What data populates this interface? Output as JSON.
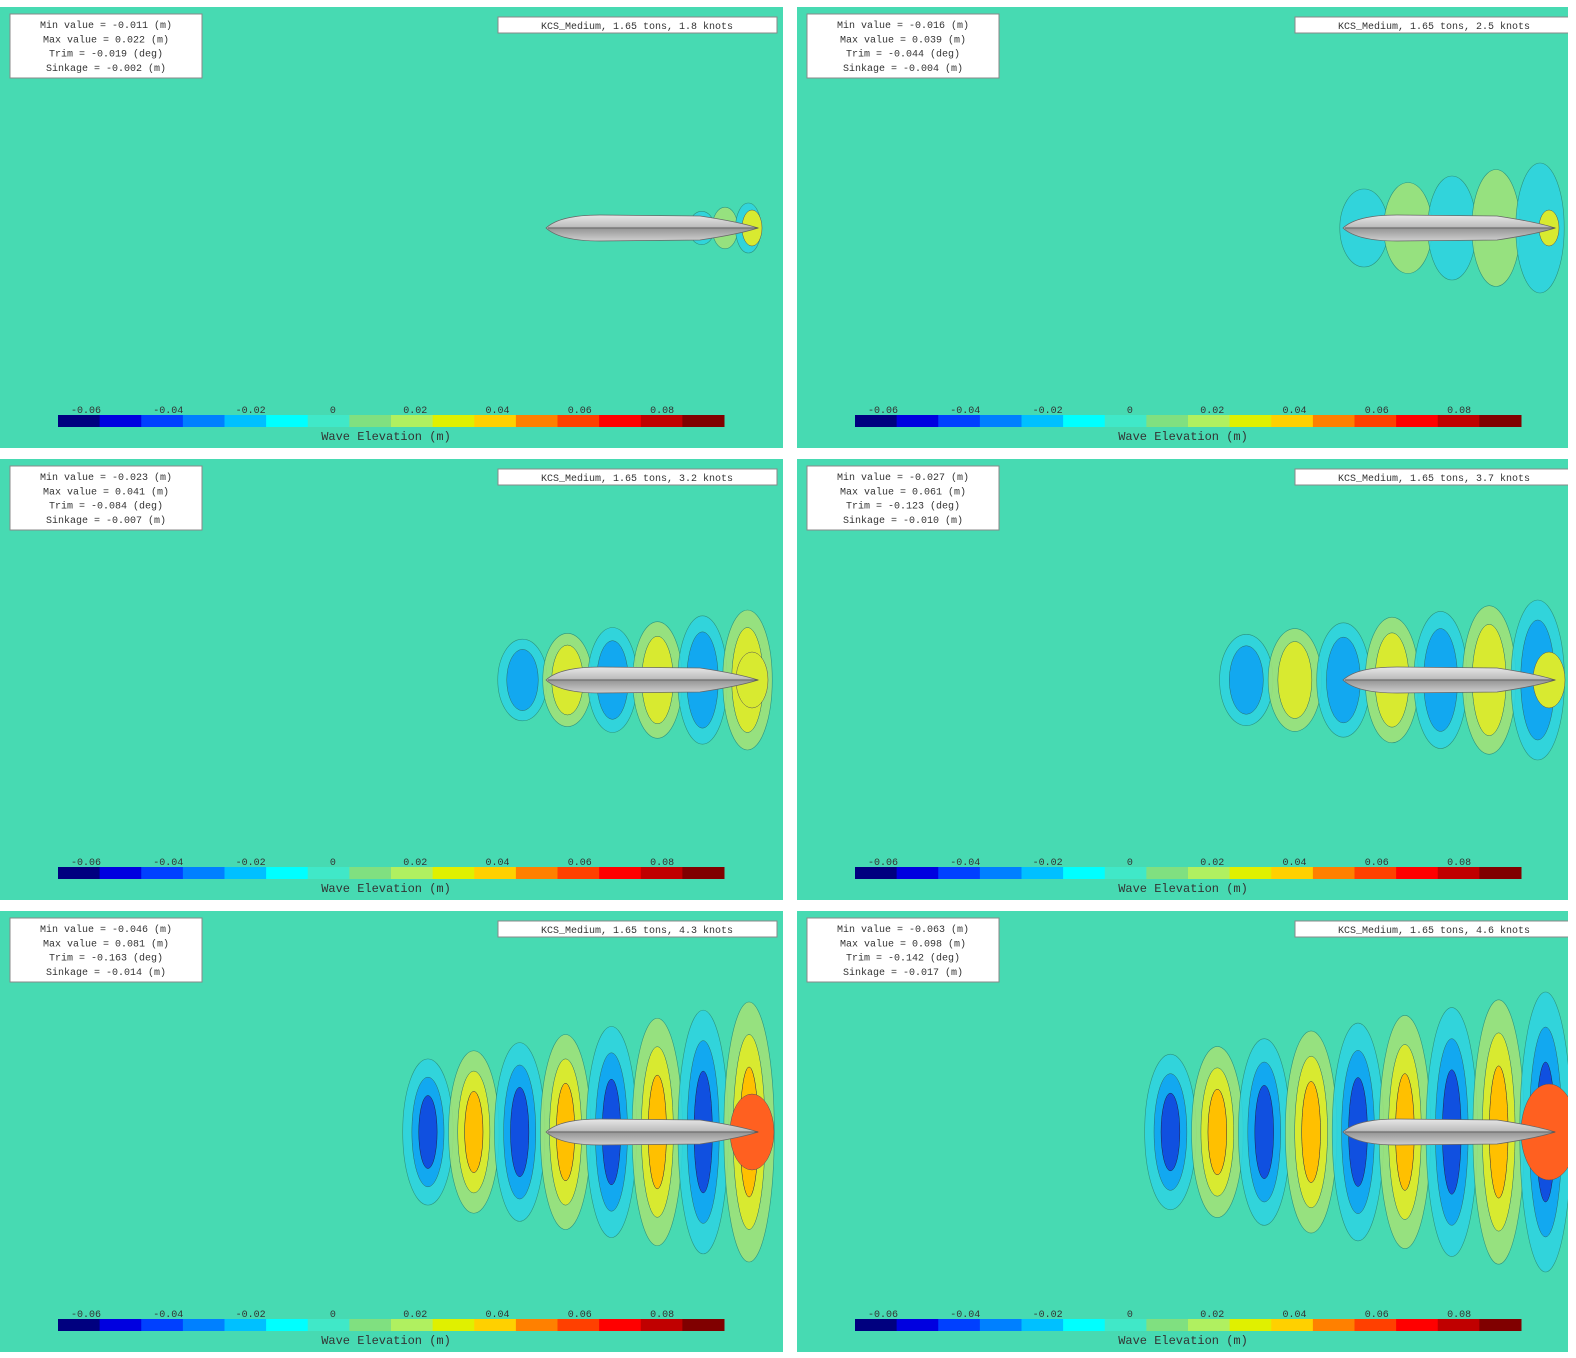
{
  "panels": [
    {
      "title": "KCS_Medium, 1.65 tons, 1.8 knots",
      "info": [
        "Min value = -0.011 (m)",
        "Max value = 0.022 (m)",
        "Trim = -0.019 (deg)",
        "Sinkage = -0.002 (m)"
      ]
    },
    {
      "title": "KCS_Medium, 1.65 tons, 2.5 knots",
      "info": [
        "Min value = -0.016 (m)",
        "Max value = 0.039 (m)",
        "Trim = -0.044 (deg)",
        "Sinkage = -0.004 (m)"
      ]
    },
    {
      "title": "KCS_Medium, 1.65 tons, 3.2 knots",
      "info": [
        "Min value = -0.023 (m)",
        "Max value = 0.041 (m)",
        "Trim = -0.084 (deg)",
        "Sinkage = -0.007 (m)"
      ]
    },
    {
      "title": "KCS_Medium, 1.65 tons, 3.7 knots",
      "info": [
        "Min value = -0.027 (m)",
        "Max value = 0.061 (m)",
        "Trim = -0.123 (deg)",
        "Sinkage = -0.010 (m)"
      ]
    },
    {
      "title": "KCS_Medium, 1.65 tons, 4.3 knots",
      "info": [
        "Min value = -0.046 (m)",
        "Max value = 0.081 (m)",
        "Trim = -0.163 (deg)",
        "Sinkage = -0.014 (m)"
      ]
    },
    {
      "title": "KCS_Medium, 1.65 tons, 4.6 knots",
      "info": [
        "Min value = -0.063 (m)",
        "Max value = 0.098 (m)",
        "Trim = -0.142 (deg)",
        "Sinkage = -0.017 (m)"
      ]
    }
  ],
  "colorbar": {
    "label": "Wave Elevation (m)",
    "ticks": [
      "-0.06",
      "-0.04",
      "-0.02",
      "0",
      "0.02",
      "0.04",
      "0.06",
      "0.08"
    ]
  }
}
